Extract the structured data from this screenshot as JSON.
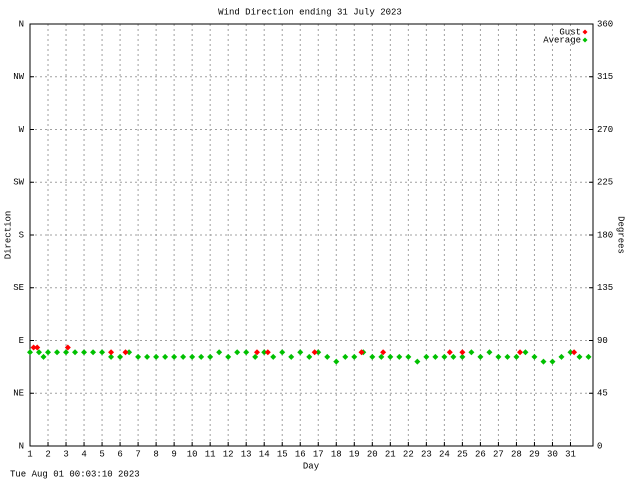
{
  "chart_data": {
    "type": "scatter",
    "title": "Wind Direction ending 31 July 2023",
    "x_label": "Day",
    "y_label": "Direction",
    "y2_label": "Degrees",
    "footer": "Tue Aug 01 00:03:10 2023",
    "xlim": [
      1,
      32.25
    ],
    "xticks": [
      1,
      2,
      3,
      4,
      5,
      6,
      7,
      8,
      9,
      10,
      11,
      12,
      13,
      14,
      15,
      16,
      17,
      18,
      19,
      20,
      21,
      22,
      23,
      24,
      25,
      26,
      27,
      28,
      29,
      30,
      31
    ],
    "ylim": [
      0,
      360
    ],
    "yticks": [
      {
        "value": 0,
        "label": "N"
      },
      {
        "value": 45,
        "label": "NE"
      },
      {
        "value": 90,
        "label": "E"
      },
      {
        "value": 135,
        "label": "SE"
      },
      {
        "value": 180,
        "label": "S"
      },
      {
        "value": 225,
        "label": "SW"
      },
      {
        "value": 270,
        "label": "W"
      },
      {
        "value": 315,
        "label": "NW"
      },
      {
        "value": 360,
        "label": "N"
      }
    ],
    "y2lim": [
      0,
      360
    ],
    "y2ticks": [
      0,
      45,
      90,
      135,
      180,
      225,
      270,
      315,
      360
    ],
    "grid": true,
    "legend": "top-right",
    "series": [
      {
        "name": "Gust",
        "color": "#ff0000",
        "x": [
          1.2,
          1.4,
          3.1,
          5.5,
          6.3,
          13.6,
          14.2,
          16.8,
          19.4,
          20.6,
          24.3,
          25,
          28.2,
          31.2
        ],
        "values": [
          84,
          84,
          84,
          80,
          80,
          80,
          80,
          80,
          80,
          80,
          80,
          80,
          80,
          80
        ]
      },
      {
        "name": "Average",
        "color": "#00c000",
        "x": [
          1,
          1.5,
          1.75,
          2,
          2.5,
          3,
          3.5,
          4,
          4.5,
          5,
          5.5,
          6,
          6.5,
          7,
          7.5,
          8,
          8.5,
          9,
          9.5,
          10,
          10.5,
          11,
          11.5,
          12,
          12.5,
          13,
          13.5,
          14,
          14.5,
          15,
          15.5,
          16,
          16.5,
          17,
          17.5,
          18,
          18.5,
          19,
          19.5,
          20,
          20.5,
          21,
          21.5,
          22,
          22.5,
          23,
          23.5,
          24,
          24.5,
          25,
          25.5,
          26,
          26.5,
          27,
          27.5,
          28,
          28.5,
          29,
          29.5,
          30,
          30.5,
          31,
          31.5,
          32
        ],
        "values": [
          80,
          80,
          76,
          80,
          80,
          80,
          80,
          80,
          80,
          80,
          76,
          76,
          80,
          76,
          76,
          76,
          76,
          76,
          76,
          76,
          76,
          76,
          80,
          76,
          80,
          80,
          76,
          80,
          76,
          80,
          76,
          80,
          76,
          80,
          76,
          72,
          76,
          76,
          80,
          76,
          76,
          76,
          76,
          76,
          72,
          76,
          76,
          76,
          76,
          76,
          80,
          76,
          80,
          76,
          76,
          76,
          80,
          76,
          72,
          72,
          76,
          80,
          76,
          76
        ]
      }
    ]
  }
}
